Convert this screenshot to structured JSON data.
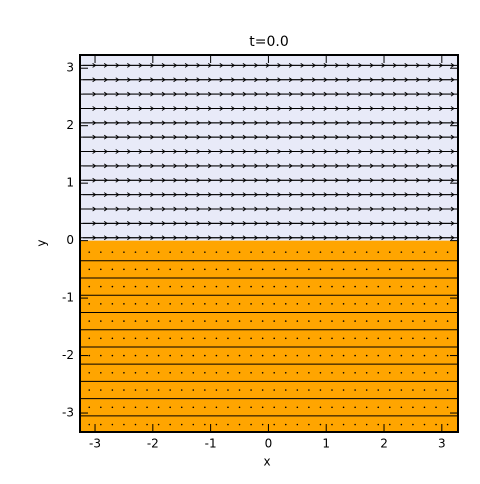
{
  "chart_data": {
    "type": "quiver",
    "title": "t=0.0",
    "xlabel": "x",
    "ylabel": "y",
    "xlim": [
      -3.26,
      3.28
    ],
    "ylim": [
      -3.33,
      3.23
    ],
    "xticks": [
      -3,
      -2,
      -1,
      0,
      1,
      2,
      3
    ],
    "yticks": [
      -3,
      -2,
      -1,
      0,
      1,
      2,
      3
    ],
    "regions": [
      {
        "ylim": [
          0,
          3.23
        ],
        "color": "#e8eaf8"
      },
      {
        "ylim": [
          -3.33,
          0
        ],
        "color": "#ffa500"
      }
    ],
    "contours": [
      0.05,
      0.3,
      0.55,
      0.8,
      1.05,
      1.3,
      1.55,
      1.8,
      2.05,
      2.3,
      2.55,
      2.8,
      3.05,
      -0.35,
      -0.65,
      -0.95,
      -1.25,
      -1.55,
      -1.85,
      -2.15,
      -2.45,
      -2.75,
      -3.05
    ],
    "arrow_x": [
      -3.1,
      -2.9,
      -2.7,
      -2.5,
      -2.3,
      -2.1,
      -1.9,
      -1.7,
      -1.5,
      -1.3,
      -1.1,
      -0.9,
      -0.7,
      -0.5,
      -0.3,
      -0.1,
      0.1,
      0.3,
      0.5,
      0.7,
      0.9,
      1.1,
      1.3,
      1.5,
      1.7,
      1.9,
      2.1,
      2.3,
      2.5,
      2.7,
      2.9,
      3.1
    ],
    "arrow_y": [
      0.05,
      0.3,
      0.55,
      0.8,
      1.05,
      1.3,
      1.55,
      1.8,
      2.05,
      2.3,
      2.55,
      2.8,
      3.05,
      -0.2,
      -0.5,
      -0.8,
      -1.1,
      -1.4,
      -1.7,
      -2.0,
      -2.3,
      -2.6,
      -2.9,
      -3.2
    ],
    "arrow_u": [
      1,
      1,
      1,
      1,
      1,
      1,
      1,
      1,
      1,
      1,
      1,
      1,
      1,
      0,
      0,
      0,
      0,
      0,
      0,
      0,
      0,
      0,
      0,
      0
    ],
    "arrow_color": "#000000"
  }
}
